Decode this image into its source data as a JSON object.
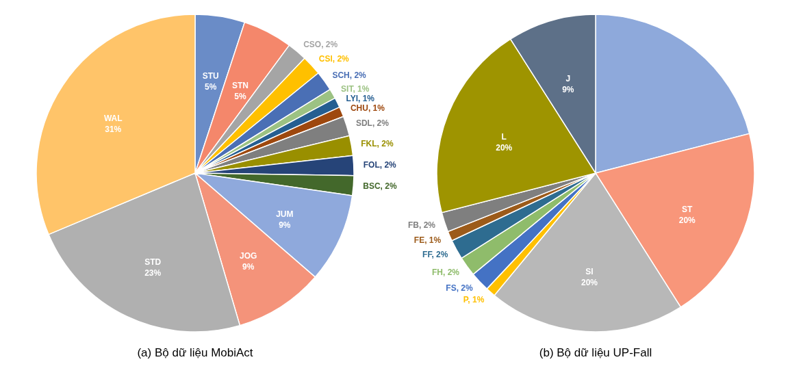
{
  "chart_data": [
    {
      "type": "pie",
      "title": "(a) Bộ dữ liệu MobiAct",
      "categories": [
        "STU",
        "STN",
        "CSO",
        "CSI",
        "SCH",
        "SIT",
        "LYI",
        "CHU",
        "SDL",
        "FKL",
        "FOL",
        "BSC",
        "JUM",
        "JOG",
        "STD",
        "WAL"
      ],
      "values": [
        5,
        5,
        2,
        2,
        2,
        1,
        1,
        1,
        2,
        2,
        2,
        2,
        9,
        9,
        23,
        31
      ],
      "value_labels": [
        "5%",
        "5%",
        "2%",
        "2%",
        "2%",
        "1%",
        "1%",
        "1%",
        "2%",
        "2%",
        "2%",
        "2%",
        "9%",
        "9%",
        "23%",
        "31%"
      ],
      "colors": [
        "#6a8cc7",
        "#f4876b",
        "#a5a5a5",
        "#ffc000",
        "#4a6fb5",
        "#9cc283",
        "#255e91",
        "#9e480e",
        "#7f7f7f",
        "#998f00",
        "#264478",
        "#43682b",
        "#8fa9dc",
        "#f4937a",
        "#b0b0b0",
        "#ffc469"
      ]
    },
    {
      "type": "pie",
      "title": "(b) Bộ dữ liệu UP-Fall",
      "categories": [
        null,
        "ST",
        "SI",
        "P",
        "FS",
        "FH",
        "FF",
        "FE",
        "FB",
        "L",
        "J"
      ],
      "values": [
        21,
        20,
        20,
        1,
        2,
        2,
        2,
        1,
        2,
        20,
        9
      ],
      "value_labels": [
        null,
        "20%",
        "20%",
        "1%",
        "2%",
        "2%",
        "2%",
        "1%",
        "2%",
        "20%",
        "9%"
      ],
      "colors": [
        "#8ea9db",
        "#f8967a",
        "#b8b8b8",
        "#ffc000",
        "#4472c4",
        "#8fbc6b",
        "#2e6c90",
        "#9c5b1a",
        "#7f7f7f",
        "#9e9400",
        "#5d7088"
      ]
    }
  ]
}
